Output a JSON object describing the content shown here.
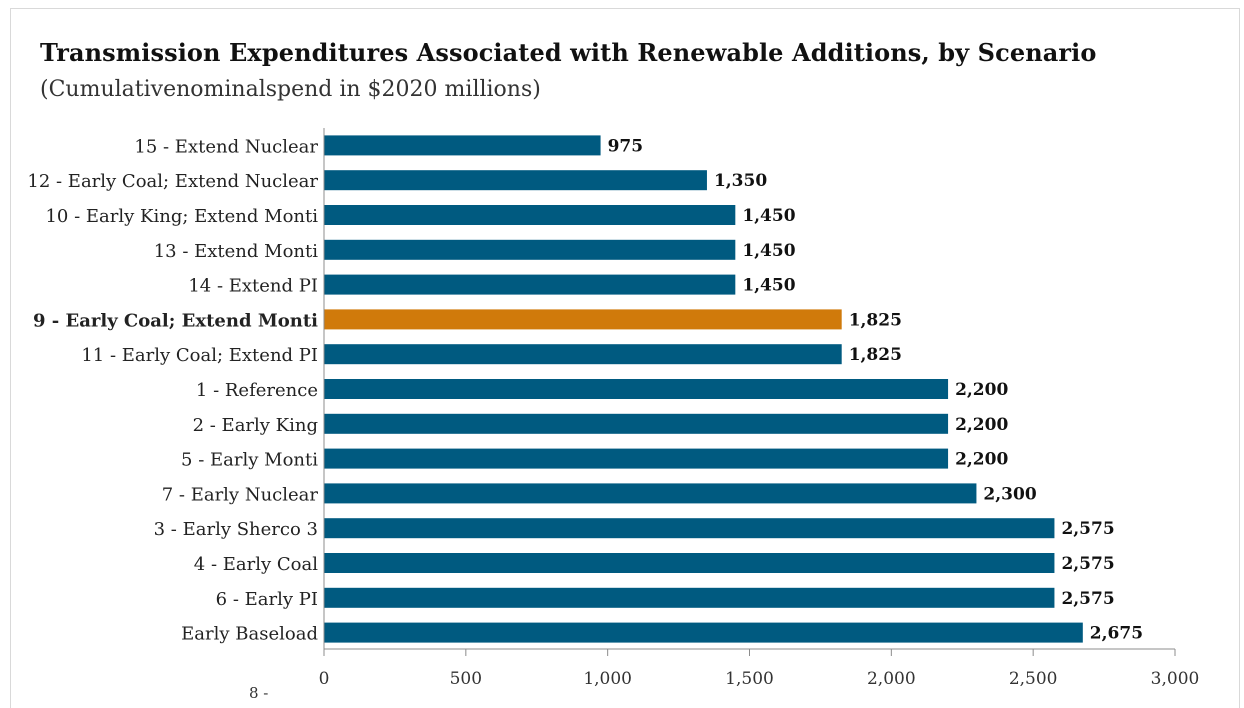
{
  "chart_data": {
    "type": "bar",
    "orientation": "horizontal",
    "title": "Transmission Expenditures Associated with Renewable Additions, by Scenario",
    "subtitle": "(Cumulativenominalspend in $2020 millions)",
    "categories": [
      "15 - Extend Nuclear",
      "12 - Early Coal; Extend Nuclear",
      "10 - Early King; Extend Monti",
      "13 - Extend Monti",
      "14 - Extend PI",
      "9 - Early Coal; Extend Monti",
      "11 - Early Coal; Extend PI",
      "1 - Reference",
      "2 - Early King",
      "5 - Early Monti",
      "7 - Early Nuclear",
      "3 - Early Sherco 3",
      "4 - Early Coal",
      "6 - Early PI",
      "Early Baseload"
    ],
    "values": [
      975,
      1350,
      1450,
      1450,
      1450,
      1825,
      1825,
      2200,
      2200,
      2200,
      2300,
      2575,
      2575,
      2575,
      2675
    ],
    "value_labels": [
      "975",
      "1,350",
      "1,450",
      "1,450",
      "1,450",
      "1,825",
      "1,825",
      "2,200",
      "2,200",
      "2,200",
      "2,300",
      "2,575",
      "2,575",
      "2,575",
      "2,675"
    ],
    "highlight_index": 5,
    "xlim": [
      0,
      3000
    ],
    "xticks": [
      0,
      500,
      1000,
      1500,
      2000,
      2500,
      3000
    ],
    "xtick_labels": [
      "0",
      "500",
      "1,000",
      "1,500",
      "2,000",
      "2,500",
      "3,000"
    ],
    "grid": false,
    "legend": "none",
    "colors": {
      "bar": "#005a80",
      "highlight": "#d07a0b",
      "axis": "#8c8c8c",
      "text": "#222222"
    }
  },
  "footer": {
    "page_number": "8 -"
  }
}
